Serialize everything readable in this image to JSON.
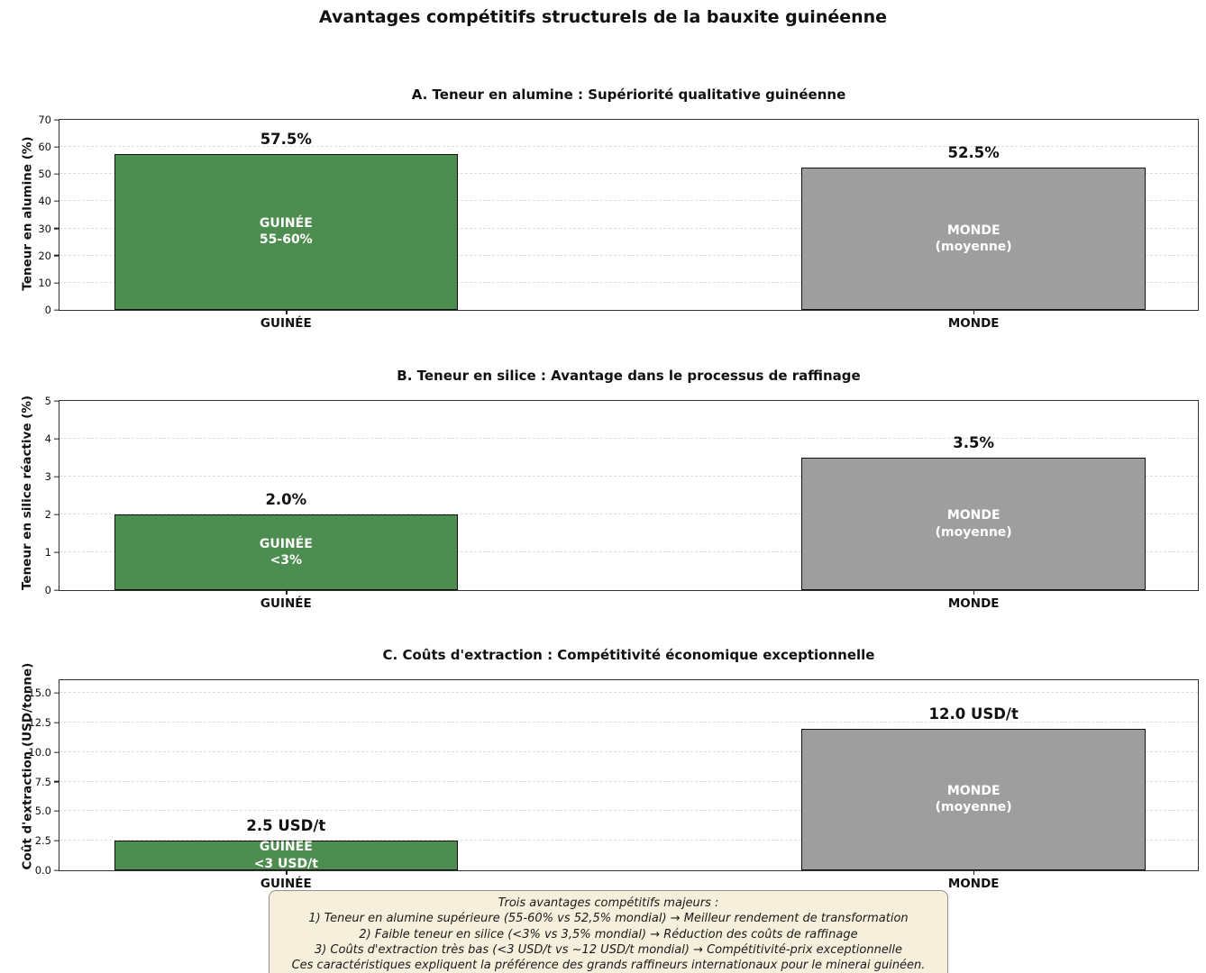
{
  "title": "Avantages compétitifs structurels de la bauxite guinéenne",
  "colors": {
    "bars": [
      "#4e8d50",
      "#9e9e9e"
    ],
    "bar_border": "#111111",
    "note_background": "#f6efdb",
    "note_border": "#909090"
  },
  "chart_data": [
    {
      "type": "bar",
      "title": "A. Teneur en alumine : Supériorité qualitative guinéenne",
      "ylabel": "Teneur en alumine (%)",
      "categories": [
        "GUINÉE",
        "MONDE"
      ],
      "values": [
        57.5,
        52.5
      ],
      "value_labels": [
        "57.5%",
        "52.5%"
      ],
      "bar_inner_labels": [
        [
          "GUINÉE",
          "55-60%"
        ],
        [
          "MONDE",
          "(moyenne)"
        ]
      ],
      "yticks": [
        "0",
        "10",
        "20",
        "30",
        "40",
        "50",
        "60",
        "70"
      ],
      "ytick_values": [
        0,
        10,
        20,
        30,
        40,
        50,
        60,
        70
      ],
      "ylim": [
        0,
        70
      ],
      "grid": true,
      "legend": "none"
    },
    {
      "type": "bar",
      "title": "B. Teneur en silice : Avantage dans le processus de raffinage",
      "ylabel": "Teneur en silice réactive (%)",
      "categories": [
        "GUINÉE",
        "MONDE"
      ],
      "values": [
        2.0,
        3.5
      ],
      "value_labels": [
        "2.0%",
        "3.5%"
      ],
      "bar_inner_labels": [
        [
          "GUINÉE",
          "<3%"
        ],
        [
          "MONDE",
          "(moyenne)"
        ]
      ],
      "yticks": [
        "0",
        "1",
        "2",
        "3",
        "4",
        "5"
      ],
      "ytick_values": [
        0,
        1,
        2,
        3,
        4,
        5
      ],
      "ylim": [
        0,
        5
      ],
      "grid": true,
      "legend": "none"
    },
    {
      "type": "bar",
      "title": "C. Coûts d'extraction : Compétitivité économique exceptionnelle",
      "ylabel": "Coût d'extraction (USD/tonne)",
      "categories": [
        "GUINÉE",
        "MONDE"
      ],
      "values": [
        2.5,
        12.0
      ],
      "value_labels": [
        "2.5 USD/t",
        "12.0 USD/t"
      ],
      "bar_inner_labels": [
        [
          "GUINÉE",
          "<3 USD/t"
        ],
        [
          "MONDE",
          "(moyenne)"
        ]
      ],
      "yticks": [
        "0.0",
        "2.5",
        "5.0",
        "7.5",
        "10.0",
        "12.5",
        "15.0"
      ],
      "ytick_values": [
        0,
        2.5,
        5,
        7.5,
        10,
        12.5,
        15
      ],
      "ylim": [
        0,
        16.1
      ],
      "grid": true,
      "legend": "none"
    }
  ],
  "note": {
    "lines": [
      "Trois avantages compétitifs majeurs :",
      "1) Teneur en alumine supérieure (55-60% vs 52,5% mondial) → Meilleur rendement de transformation",
      "2) Faible teneur en silice (<3% vs 3,5% mondial) → Réduction des coûts de raffinage",
      "3) Coûts d'extraction très bas (<3 USD/t vs ~12 USD/t mondial) → Compétitivité-prix exceptionnelle",
      "Ces caractéristiques expliquent la préférence des grands raffineurs internationaux pour le minerai guinéen."
    ]
  }
}
